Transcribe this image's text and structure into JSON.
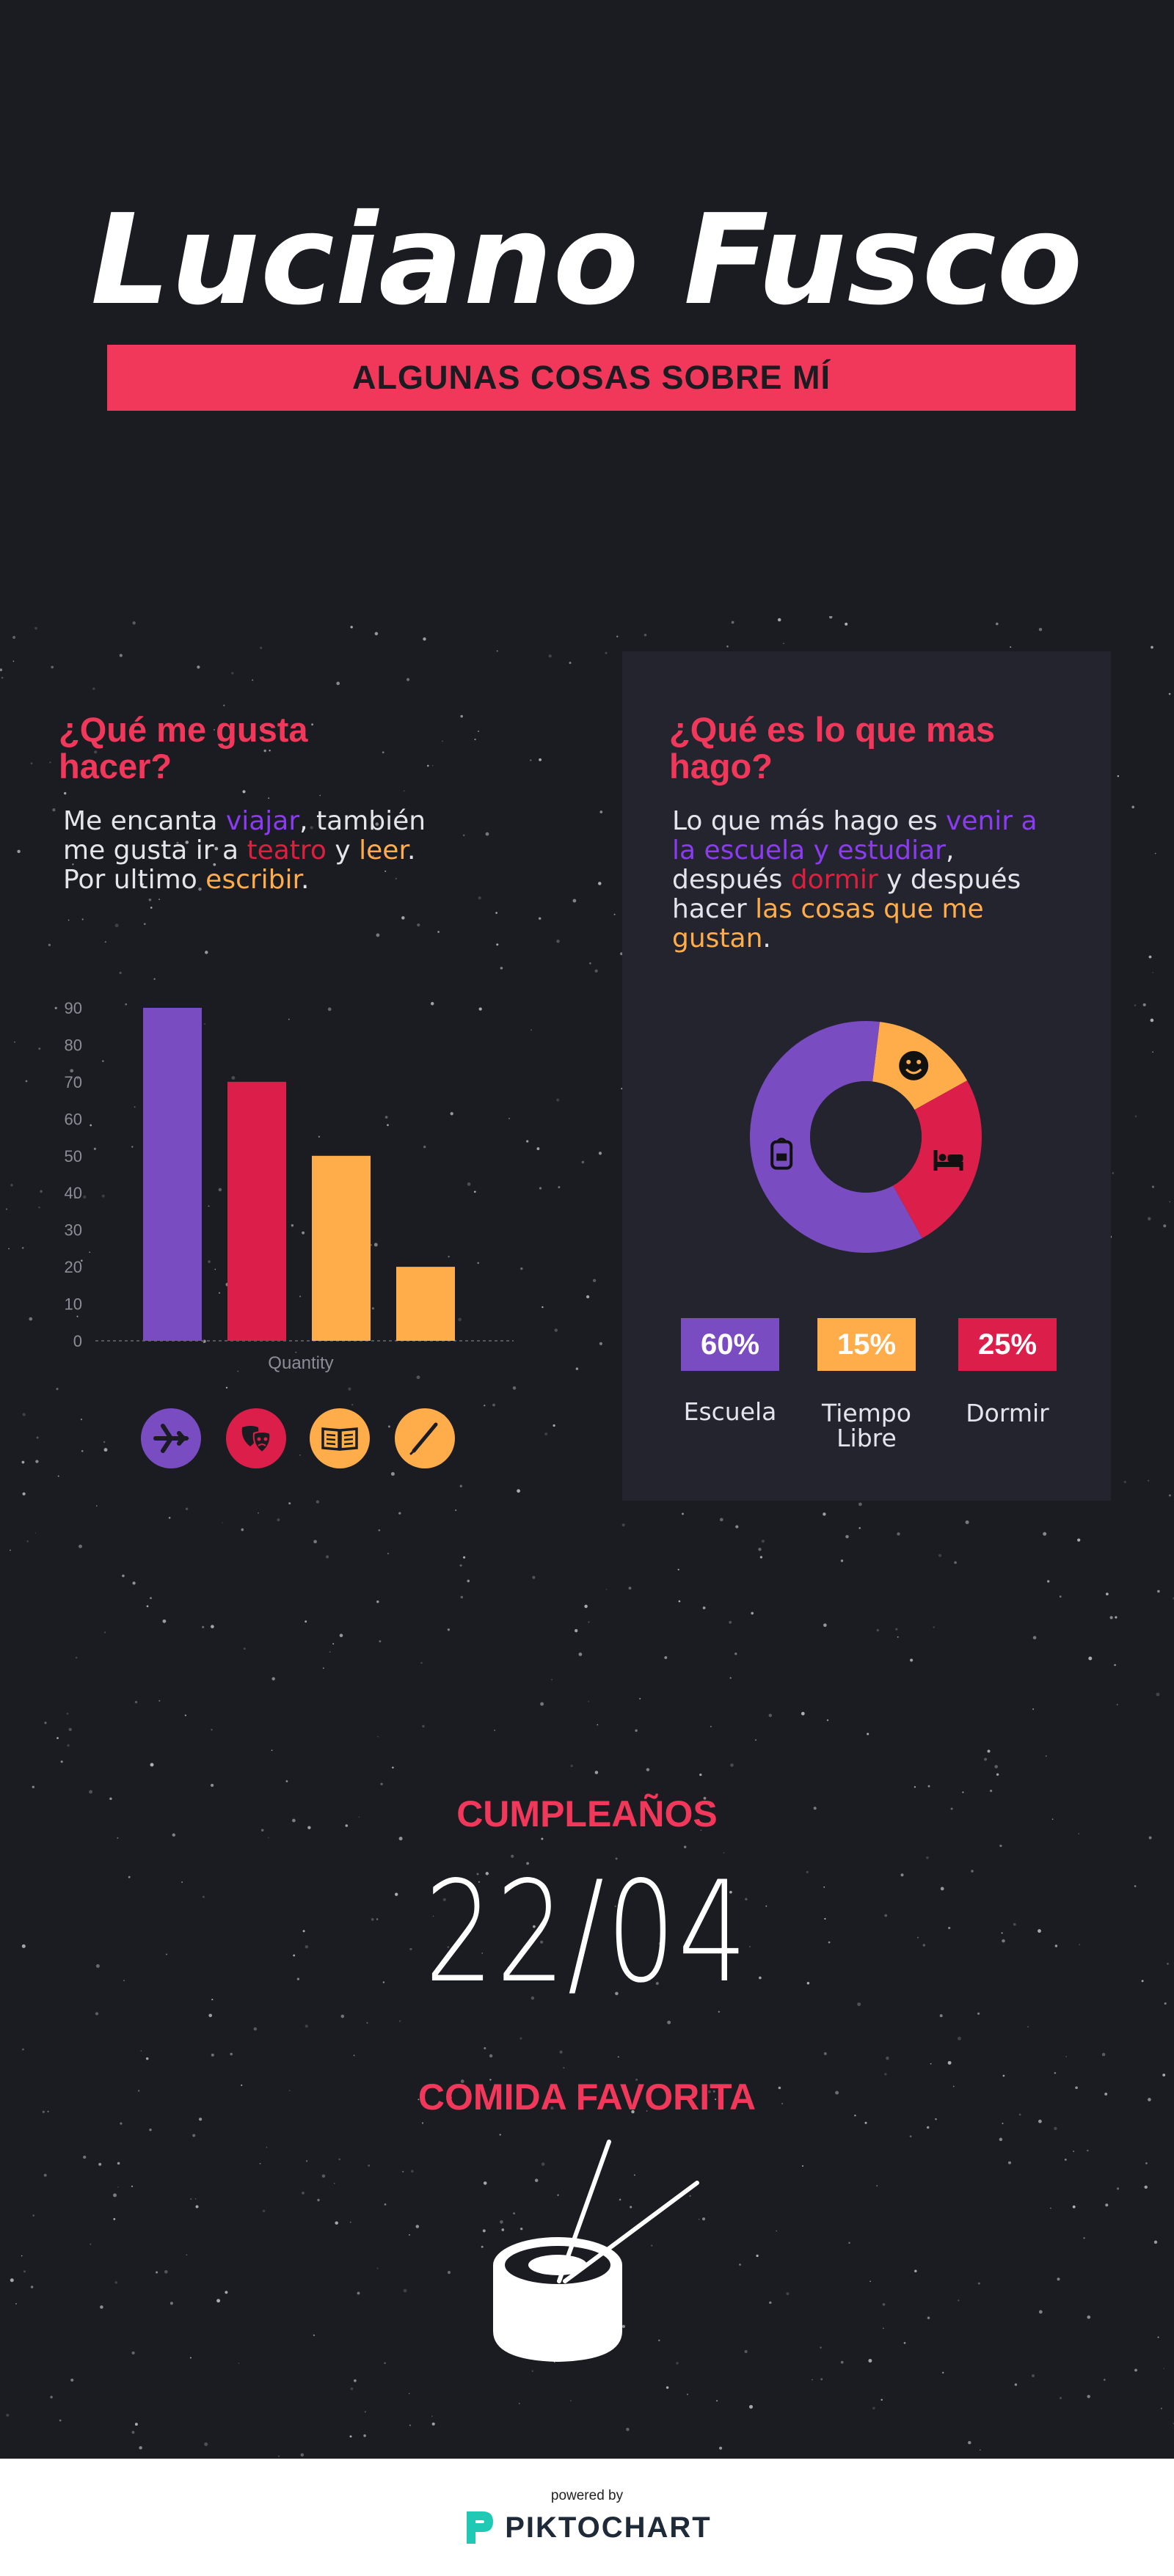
{
  "header": {
    "name": "Luciano Fusco",
    "banner": "ALGUNAS COSAS SOBRE MÍ"
  },
  "left_section": {
    "heading_line1": "¿Qué me gusta",
    "heading_line2": "hacer?",
    "para": {
      "l1a": "Me encanta ",
      "l1b": "viajar",
      "l1c": ", también",
      "l2a": "me gusta ir a ",
      "l2b": "teatro",
      "l2c": " y ",
      "l2d": "leer",
      "l2e": ".",
      "l3a": "Por ultimo ",
      "l3b": "escribir",
      "l3c": "."
    },
    "icons": [
      "airplane-icon",
      "theater-masks-icon",
      "open-book-icon",
      "pen-icon"
    ]
  },
  "right_section": {
    "heading_line1": "¿Qué es lo que mas",
    "heading_line2": "hago?",
    "para": {
      "l1a": "Lo que más hago es ",
      "l1b": "venir a",
      "l2a": "la escuela y estudiar",
      "l2b": ",",
      "l3a": "después ",
      "l3b": "dormir",
      "l3c": " y después",
      "l4a": "hacer ",
      "l4b": "las cosas que me",
      "l5a": "gustan",
      "l5b": "."
    },
    "legend": [
      {
        "value": "60%",
        "label_line1": "Escuela",
        "label_line2": ""
      },
      {
        "value": "15%",
        "label_line1": "Tiempo",
        "label_line2": "Libre"
      },
      {
        "value": "25%",
        "label_line1": "Dormir",
        "label_line2": ""
      }
    ]
  },
  "birthday": {
    "title": "CUMPLEAÑOS",
    "date": "22/04"
  },
  "food": {
    "title": "COMIDA FAVORITA",
    "icon": "sushi-chopsticks-icon"
  },
  "footer": {
    "powered": "powered by",
    "brand": "PIKTOCHART"
  },
  "colors": {
    "background": "#1b1b22",
    "panel": "#24242f",
    "accent_pink": "#f2385a",
    "purple": "#7a4cc2",
    "red": "#dc1e4a",
    "orange": "#ffad4a"
  },
  "chart_data": [
    {
      "type": "bar",
      "categories": [
        "viajar",
        "teatro",
        "leer",
        "escribir"
      ],
      "values": [
        90,
        70,
        50,
        20
      ],
      "colors": [
        "#7a4cc2",
        "#dc1e4a",
        "#ffad4a",
        "#ffad4a"
      ],
      "xlabel": "Quantity",
      "ylabel": "",
      "ylim": [
        0,
        90
      ],
      "yticks": [
        0,
        10,
        20,
        30,
        40,
        50,
        60,
        70,
        80,
        90
      ],
      "grid": false,
      "legend": "none"
    },
    {
      "type": "pie",
      "donut": true,
      "labels": [
        "Escuela",
        "Tiempo Libre",
        "Dormir"
      ],
      "values": [
        60,
        15,
        25
      ],
      "colors": [
        "#7a4cc2",
        "#ffad4a",
        "#dc1e4a"
      ],
      "slice_icons": [
        "backpack-icon",
        "smiley-icon",
        "bed-icon"
      ]
    }
  ]
}
